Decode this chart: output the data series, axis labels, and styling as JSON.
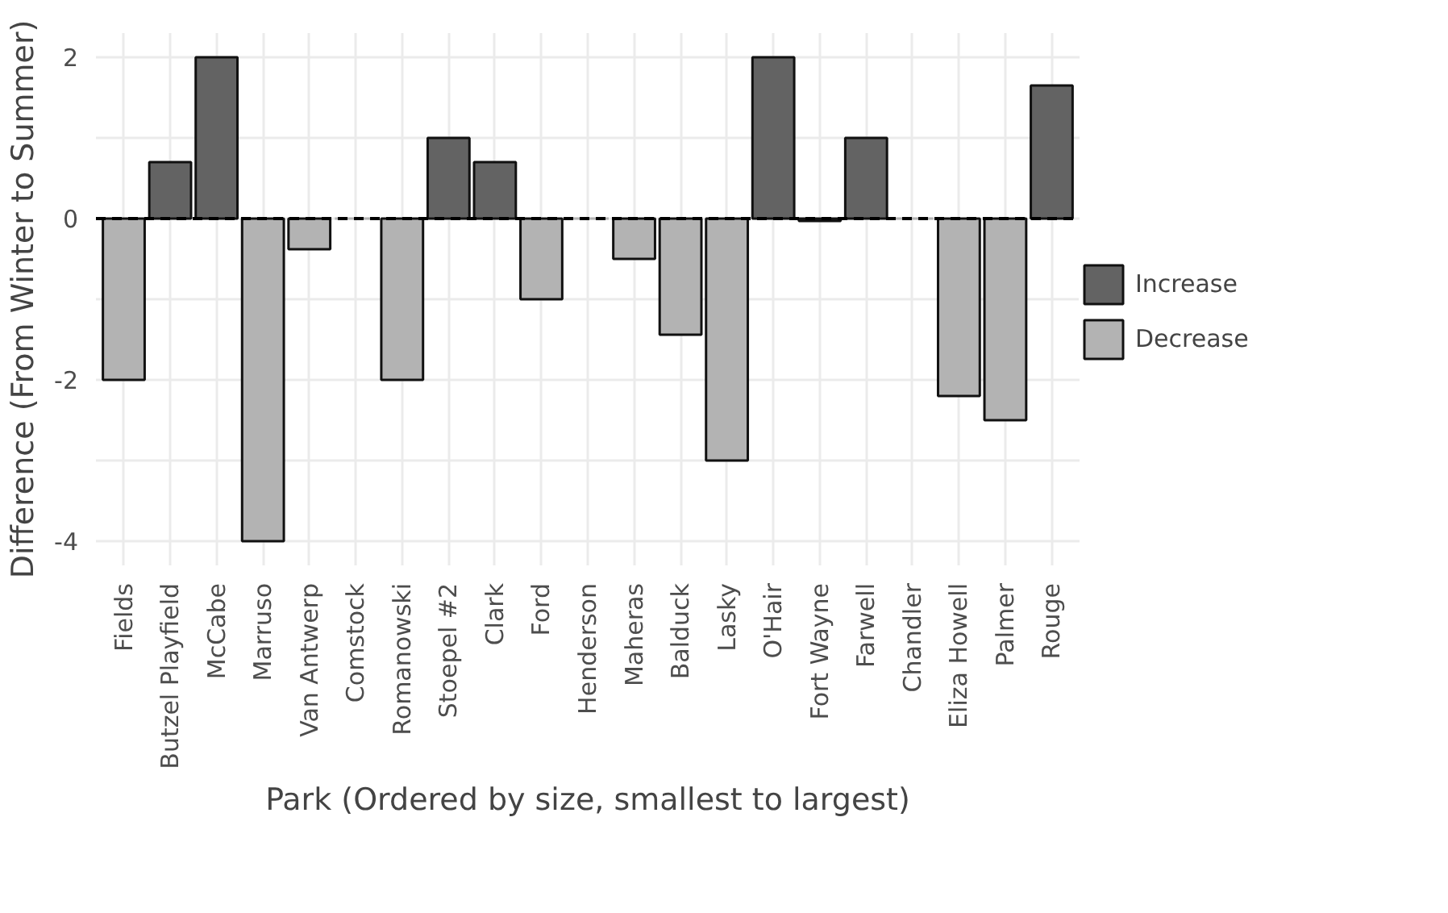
{
  "chart_data": {
    "type": "bar",
    "xlabel": "Park (Ordered by size, smallest to largest)",
    "ylabel": "Difference (From Winter to Summer)",
    "categories": [
      "Fields",
      "Butzel Playfield",
      "McCabe",
      "Marruso",
      "Van Antwerp",
      "Comstock",
      "Romanowski",
      "Stoepel #2",
      "Clark",
      "Ford",
      "Henderson",
      "Maheras",
      "Balduck",
      "Lasky",
      "O'Hair",
      "Fort Wayne",
      "Farwell",
      "Chandler",
      "Eliza Howell",
      "Palmer",
      "Rouge"
    ],
    "series": [
      {
        "name": "Increase",
        "color": "#636363",
        "values": [
          null,
          0.7,
          2,
          null,
          null,
          null,
          null,
          1,
          0.7,
          null,
          null,
          null,
          null,
          null,
          2,
          null,
          1,
          null,
          null,
          null,
          1.65
        ]
      },
      {
        "name": "Decrease",
        "color": "#b3b3b3",
        "values": [
          -2,
          null,
          null,
          -4,
          -0.38,
          0,
          -2,
          null,
          null,
          -1,
          0,
          -0.5,
          -1.44,
          -3,
          null,
          -0.03,
          null,
          0,
          -2.2,
          -2.5,
          null
        ]
      }
    ],
    "ylim": [
      -4.3,
      2.3
    ],
    "yticks": [
      -4,
      {
        "value": -3,
        "label": null
      },
      -2,
      {
        "value": -1,
        "label": null
      },
      0,
      {
        "value": 1,
        "label": null
      },
      2
    ],
    "ref_lines": [
      {
        "axis": "y",
        "value": 0,
        "color": "#000000",
        "line_style": "dashed"
      }
    ],
    "grid": true,
    "legend": "right"
  }
}
